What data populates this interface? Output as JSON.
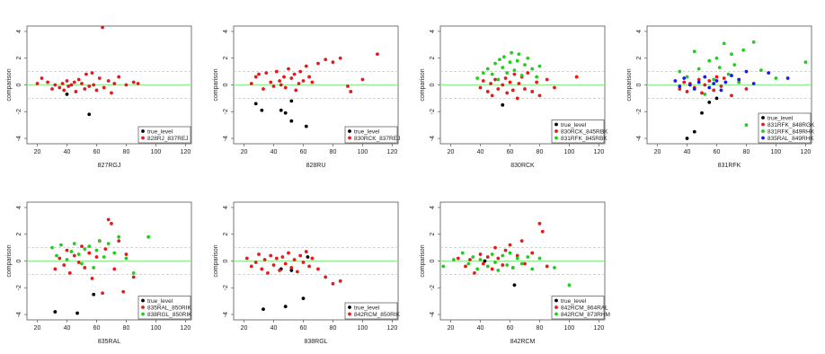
{
  "chart_data": [
    {
      "type": "scatter",
      "x_label": "827RGJ",
      "y_label": "comparison",
      "xlim": [
        13,
        124
      ],
      "ylim": [
        -4.4,
        4.4
      ],
      "xticks": [
        20,
        40,
        60,
        80,
        100,
        120
      ],
      "yticks": [
        -4,
        -2,
        0,
        2,
        4
      ],
      "solid_hlines": [
        0
      ],
      "dashed_hlines": [
        -1,
        1
      ],
      "line_color": "#90ee90",
      "legend": "bottom right",
      "series": [
        {
          "name": "true_level",
          "color": "#000000",
          "x": [
            40,
            55
          ],
          "values": [
            -0.7,
            -2.2
          ]
        },
        {
          "name": "828RJ_837REJ",
          "color": "#e41a1c",
          "x": [
            20,
            23,
            27,
            30,
            32,
            35,
            37,
            38,
            40,
            41,
            43,
            45,
            46,
            48,
            50,
            52,
            53,
            55,
            57,
            58,
            60,
            62,
            64,
            65,
            68,
            70,
            72,
            75,
            80,
            85,
            88
          ],
          "values": [
            0.1,
            0.5,
            0.2,
            -0.3,
            0,
            -0.2,
            0.1,
            -0.4,
            0.3,
            -0.1,
            0,
            0.2,
            -0.5,
            0.4,
            0.1,
            -0.3,
            0.8,
            -0.1,
            0.9,
            0,
            -0.4,
            0.5,
            4.3,
            -0.2,
            0.3,
            -0.6,
            0.1,
            0.6,
            0,
            0.2,
            0.1
          ]
        }
      ]
    },
    {
      "type": "scatter",
      "x_label": "828RU",
      "y_label": "comparison",
      "xlim": [
        13,
        124
      ],
      "ylim": [
        -4.4,
        4.4
      ],
      "xticks": [
        20,
        40,
        60,
        80,
        100,
        120
      ],
      "yticks": [
        -4,
        -2,
        0,
        2,
        4
      ],
      "solid_hlines": [
        0
      ],
      "dashed_hlines": [
        -1,
        1
      ],
      "line_color": "#90ee90",
      "legend": "bottom right",
      "series": [
        {
          "name": "true_level",
          "color": "#000000",
          "x": [
            28,
            32,
            45,
            48,
            52,
            52,
            62
          ],
          "values": [
            -1.4,
            -1.9,
            -1.9,
            -2.1,
            -2.7,
            -1.2,
            -3.1
          ]
        },
        {
          "name": "830RCK_837REJ",
          "color": "#e41a1c",
          "x": [
            25,
            28,
            30,
            33,
            35,
            38,
            40,
            42,
            44,
            45,
            47,
            48,
            50,
            52,
            54,
            55,
            57,
            58,
            60,
            62,
            64,
            66,
            70,
            75,
            80,
            85,
            90,
            92,
            100,
            110
          ],
          "values": [
            0.1,
            0.6,
            0.8,
            -0.3,
            0.9,
            0.2,
            -0.1,
            1,
            0.3,
            0,
            0.6,
            -0.2,
            1.2,
            0.5,
            0.8,
            -0.4,
            0.1,
            1,
            0.3,
            1.4,
            0.6,
            0.2,
            1.6,
            1.9,
            1.7,
            2,
            -0.1,
            -0.5,
            0.4,
            2.3
          ]
        }
      ]
    },
    {
      "type": "scatter",
      "x_label": "830RCK",
      "y_label": "comparison",
      "xlim": [
        13,
        124
      ],
      "ylim": [
        -4.4,
        4.4
      ],
      "xticks": [
        20,
        40,
        60,
        80,
        100,
        120
      ],
      "yticks": [
        -4,
        -2,
        0,
        2,
        4
      ],
      "solid_hlines": [
        0
      ],
      "dashed_hlines": [
        -1,
        1
      ],
      "line_color": "#90ee90",
      "legend": "bottom right",
      "series": [
        {
          "name": "true_level",
          "color": "#000000",
          "x": [
            55
          ],
          "values": [
            -1.5
          ]
        },
        {
          "name": "830RCK_845RBK",
          "color": "#e41a1c",
          "x": [
            40,
            42,
            45,
            47,
            48,
            50,
            52,
            55,
            57,
            58,
            60,
            62,
            63,
            65,
            66,
            68,
            70,
            72,
            75,
            78,
            80,
            85,
            90,
            105
          ],
          "values": [
            -0.2,
            0.3,
            -0.5,
            0.1,
            -0.8,
            0.4,
            -0.3,
            0,
            0.5,
            -0.6,
            0.2,
            -0.4,
            0.8,
            -1,
            0.1,
            0.6,
            -0.3,
            0.9,
            -0.5,
            0.2,
            -0.8,
            0.4,
            -0.2,
            0.6
          ]
        },
        {
          "name": "831RFK_845RBK",
          "color": "#22cc22",
          "x": [
            38,
            42,
            45,
            48,
            50,
            52,
            53,
            55,
            56,
            58,
            60,
            61,
            63,
            65,
            66,
            68,
            70,
            72,
            75,
            78,
            80
          ],
          "values": [
            0.5,
            0.9,
            1.2,
            0.8,
            1.6,
            0.4,
            1.9,
            1.3,
            2.1,
            0.9,
            1.7,
            2.4,
            1.1,
            1.8,
            2.3,
            0.7,
            1.5,
            2,
            1.2,
            0.6,
            1.4
          ]
        }
      ]
    },
    {
      "type": "scatter",
      "x_label": "831RFK",
      "y_label": "comparison",
      "xlim": [
        13,
        124
      ],
      "ylim": [
        -4.4,
        4.4
      ],
      "xticks": [
        20,
        40,
        60,
        80,
        100,
        120
      ],
      "yticks": [
        -4,
        -2,
        0,
        2,
        4
      ],
      "solid_hlines": [
        0
      ],
      "dashed_hlines": [
        -1,
        1
      ],
      "line_color": "#90ee90",
      "legend": "bottom right",
      "series": [
        {
          "name": "true_level",
          "color": "#000000",
          "x": [
            40,
            45,
            50,
            55,
            60
          ],
          "values": [
            -4,
            -3.5,
            -2.1,
            -1.3,
            -1
          ]
        },
        {
          "name": "831RFK_848RGK",
          "color": "#e41a1c",
          "x": [
            35,
            38,
            40,
            42,
            45,
            48,
            50,
            52,
            55,
            58,
            60,
            63,
            65,
            70,
            75,
            80
          ],
          "values": [
            -0.3,
            0.2,
            -0.5,
            0.1,
            -0.2,
            0.4,
            -0.6,
            0,
            0.3,
            -0.4,
            0.6,
            -0.1,
            0.5,
            -0.8,
            0.2,
            -0.3
          ]
        },
        {
          "name": "831RFK_849RHK",
          "color": "#22cc22",
          "x": [
            35,
            40,
            45,
            48,
            52,
            55,
            58,
            60,
            62,
            65,
            68,
            70,
            72,
            75,
            78,
            80,
            85,
            90,
            100,
            120
          ],
          "values": [
            1,
            0.6,
            2.5,
            1.2,
            -0.7,
            1.8,
            0.4,
            2,
            1.3,
            3.1,
            0.8,
            2.3,
            1.5,
            0.2,
            2.6,
            -3,
            3.2,
            1.1,
            0.5,
            1.7
          ]
        },
        {
          "name": "835RAL_849RHK",
          "color": "#1a1aee",
          "x": [
            32,
            35,
            38,
            42,
            45,
            48,
            52,
            55,
            58,
            60,
            63,
            66,
            70,
            75,
            80,
            85,
            95,
            108
          ],
          "values": [
            0.3,
            -0.1,
            0.5,
            0,
            -0.3,
            0.2,
            0.6,
            -0.2,
            0.1,
            0.3,
            -0.4,
            0.2,
            0.7,
            0.4,
            1,
            0.1,
            0.9,
            0.5
          ]
        }
      ]
    },
    {
      "type": "scatter",
      "x_label": "835RAL",
      "y_label": "comparison",
      "xlim": [
        13,
        124
      ],
      "ylim": [
        -4.4,
        4.4
      ],
      "xticks": [
        20,
        40,
        60,
        80,
        100,
        120
      ],
      "yticks": [
        -4,
        -2,
        0,
        2,
        4
      ],
      "solid_hlines": [
        0
      ],
      "dashed_hlines": [
        -1,
        1
      ],
      "line_color": "#90ee90",
      "legend": "bottom right",
      "series": [
        {
          "name": "true_level",
          "color": "#000000",
          "x": [
            32,
            47,
            58
          ],
          "values": [
            -3.8,
            -3.9,
            -2.5
          ]
        },
        {
          "name": "835RAL_850RIK",
          "color": "#e41a1c",
          "x": [
            32,
            35,
            38,
            40,
            42,
            45,
            48,
            50,
            52,
            55,
            57,
            60,
            62,
            64,
            66,
            68,
            70,
            72,
            75,
            78,
            80,
            85
          ],
          "values": [
            -0.6,
            0.2,
            -0.3,
            0.8,
            -0.9,
            0.4,
            -0.1,
            1.1,
            -0.5,
            0.6,
            -1.3,
            0.3,
            1.5,
            -2.4,
            0.9,
            3.1,
            2.8,
            -0.6,
            1.5,
            -2.3,
            0.5,
            -1.2
          ]
        },
        {
          "name": "838RGL_850RIK",
          "color": "#22cc22",
          "x": [
            30,
            33,
            36,
            40,
            43,
            45,
            48,
            50,
            52,
            55,
            58,
            60,
            62,
            65,
            68,
            72,
            75,
            80,
            85,
            95
          ],
          "values": [
            1,
            0.4,
            1.2,
            0.1,
            0.7,
            1.3,
            0.5,
            -0.2,
            0.9,
            1.1,
            -0.5,
            0.8,
            1.5,
            0.3,
            1.3,
            0.6,
            1.8,
            0.2,
            -0.9,
            1.8
          ]
        }
      ]
    },
    {
      "type": "scatter",
      "x_label": "838RGL",
      "y_label": "comparison",
      "xlim": [
        13,
        124
      ],
      "ylim": [
        -4.4,
        4.4
      ],
      "xticks": [
        20,
        40,
        60,
        80,
        100,
        120
      ],
      "yticks": [
        -4,
        -2,
        0,
        2,
        4
      ],
      "solid_hlines": [
        0
      ],
      "dashed_hlines": [
        -1,
        1
      ],
      "line_color": "#90ee90",
      "legend": "bottom right",
      "series": [
        {
          "name": "true_level",
          "color": "#000000",
          "x": [
            33,
            45,
            48,
            52,
            60,
            63
          ],
          "values": [
            -3.6,
            -0.6,
            -3.4,
            -0.7,
            -2.8,
            0.3
          ]
        },
        {
          "name": "842RCM_850RIK",
          "color": "#e41a1c",
          "x": [
            22,
            25,
            28,
            30,
            32,
            34,
            36,
            38,
            40,
            42,
            44,
            46,
            48,
            50,
            52,
            54,
            56,
            58,
            60,
            62,
            64,
            66,
            70,
            75,
            80,
            85
          ],
          "values": [
            0.2,
            -0.4,
            -0.1,
            0.5,
            -0.6,
            0.1,
            -0.9,
            0.4,
            -0.3,
            0.2,
            -0.7,
            0.3,
            -0.2,
            0.6,
            -0.5,
            0.1,
            -0.8,
            0.4,
            -0.1,
            0.7,
            -0.4,
            0.2,
            -0.6,
            -1.2,
            -1.7,
            -1.5
          ]
        }
      ]
    },
    {
      "type": "scatter",
      "x_label": "842RCM",
      "y_label": "comparison",
      "xlim": [
        13,
        124
      ],
      "ylim": [
        -4.4,
        4.4
      ],
      "xticks": [
        20,
        40,
        60,
        80,
        100,
        120
      ],
      "yticks": [
        -4,
        -2,
        0,
        2,
        4
      ],
      "solid_hlines": [
        0
      ],
      "dashed_hlines": [
        -1,
        1
      ],
      "line_color": "#90ee90",
      "legend": "bottom right",
      "series": [
        {
          "name": "true_level",
          "color": "#000000",
          "x": [
            43,
            63
          ],
          "values": [
            0,
            -1.8
          ]
        },
        {
          "name": "842RCM_864RAL",
          "color": "#e41a1c",
          "x": [
            25,
            30,
            33,
            36,
            40,
            42,
            45,
            48,
            50,
            52,
            55,
            57,
            60,
            62,
            65,
            68,
            70,
            75,
            80,
            82,
            85
          ],
          "values": [
            0.2,
            -0.4,
            0.1,
            -0.9,
            0.5,
            -0.2,
            0.3,
            -0.6,
            1,
            0.2,
            -0.3,
            0.8,
            1.2,
            -0.5,
            0.4,
            1.5,
            -0.2,
            0.6,
            2.8,
            2.2,
            -0.4
          ]
        },
        {
          "name": "842RCM_873RHM",
          "color": "#22cc22",
          "x": [
            15,
            22,
            28,
            32,
            35,
            38,
            40,
            45,
            48,
            50,
            52,
            55,
            58,
            60,
            62,
            65,
            68,
            72,
            75,
            80,
            90,
            100
          ],
          "values": [
            -0.4,
            0.1,
            0.6,
            -0.2,
            0.3,
            -0.6,
            0.1,
            -0.4,
            0.5,
            -0.1,
            -0.7,
            0.4,
            -0.3,
            0.6,
            -0.5,
            0.2,
            -0.2,
            0.3,
            -0.6,
            0.2,
            -0.5,
            -1.8
          ]
        }
      ]
    }
  ]
}
